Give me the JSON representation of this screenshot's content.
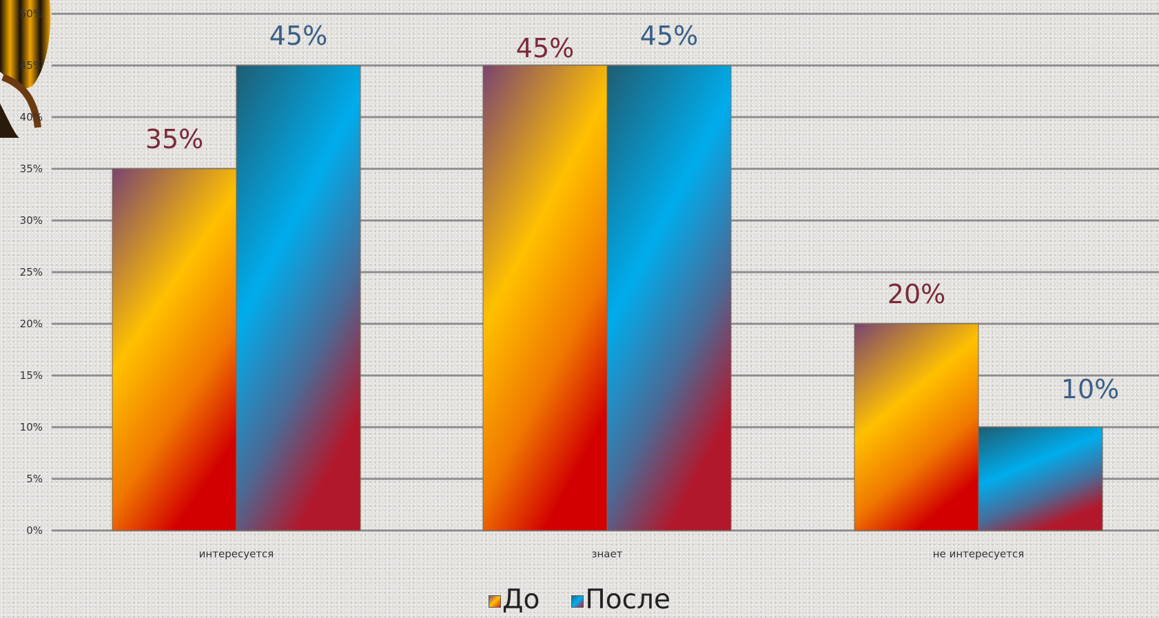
{
  "chart_data": {
    "type": "bar",
    "categories": [
      "интересуется",
      "знает",
      "не интересуется"
    ],
    "series": [
      {
        "name": "До",
        "values": [
          35,
          45,
          20
        ],
        "labels": [
          "35%",
          "45%",
          "20%"
        ],
        "label_color": "#7b2a3a"
      },
      {
        "name": "После",
        "values": [
          45,
          45,
          10
        ],
        "labels": [
          "45%",
          "45%",
          "10%"
        ],
        "label_color": "#3a5f88"
      }
    ],
    "y_ticks": [
      "0%",
      "5%",
      "10%",
      "15%",
      "20%",
      "25%",
      "30%",
      "35%",
      "40%",
      "45%",
      "50%"
    ],
    "ylim": [
      0,
      50
    ],
    "grid": true,
    "legend_position": "bottom"
  },
  "legend": {
    "before_label": "До",
    "after_label": "После"
  },
  "colors": {
    "gridline": "#8c8c8c",
    "axis_text": "#333333"
  }
}
